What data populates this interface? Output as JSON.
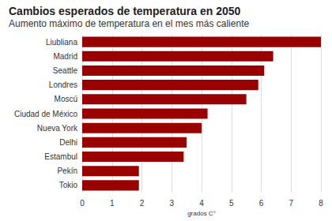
{
  "chart_data": {
    "type": "bar",
    "title": "Cambios esperados de temperatura en 2050",
    "subtitle": "Aumento máximo de temperatura en el mes más caliente",
    "categories": [
      "Liubliana",
      "Madrid",
      "Seattle",
      "Londres",
      "Moscú",
      "Ciudad de México",
      "Nueva York",
      "Delhi",
      "Estambul",
      "Pekín",
      "Tokio"
    ],
    "values": [
      8.0,
      6.4,
      6.1,
      5.9,
      5.5,
      4.2,
      4.0,
      3.5,
      3.4,
      1.9,
      1.9
    ],
    "color": "#990000",
    "orientation": "horizontal",
    "xlabel": "grados C°",
    "xlim": [
      0,
      8
    ],
    "xticks": [
      0,
      1,
      2,
      3,
      4,
      5,
      6,
      7,
      8
    ],
    "grid": true
  }
}
